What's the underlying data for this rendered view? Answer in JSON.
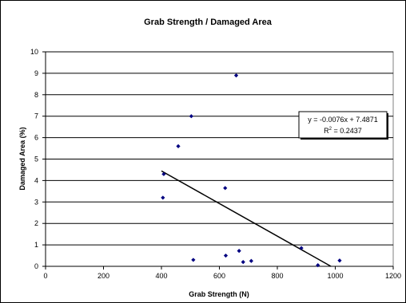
{
  "chart_data": {
    "type": "scatter",
    "title": "Grab Strength /  Damaged Area",
    "xlabel": "Grab Strength (N)",
    "ylabel": "Damaged Area (%)",
    "xlim": [
      0,
      1200
    ],
    "ylim": [
      0,
      10
    ],
    "x_ticks": [
      "0",
      "200",
      "400",
      "600",
      "800",
      "1000",
      "1200"
    ],
    "y_ticks": [
      "0",
      "1",
      "2",
      "3",
      "4",
      "5",
      "6",
      "7",
      "8",
      "9",
      "10"
    ],
    "grid": "horizontal",
    "marker_color": "#000080",
    "points": [
      {
        "x": 405,
        "y": 3.2
      },
      {
        "x": 408,
        "y": 4.3
      },
      {
        "x": 458,
        "y": 5.6
      },
      {
        "x": 503,
        "y": 7.0
      },
      {
        "x": 510,
        "y": 0.3
      },
      {
        "x": 620,
        "y": 3.65
      },
      {
        "x": 622,
        "y": 0.5
      },
      {
        "x": 658,
        "y": 8.9
      },
      {
        "x": 668,
        "y": 0.72
      },
      {
        "x": 682,
        "y": 0.2
      },
      {
        "x": 710,
        "y": 0.25
      },
      {
        "x": 883,
        "y": 0.85
      },
      {
        "x": 940,
        "y": 0.05
      },
      {
        "x": 1015,
        "y": 0.27
      }
    ],
    "trendline": {
      "slope": -0.0076,
      "intercept": 7.4871,
      "x_start": 400,
      "x_end": 985
    },
    "equation_label": "y = -0.0076x + 7.4871",
    "r2_base": "R",
    "r2_sup": "2",
    "r2_value": " = 0.2437"
  }
}
